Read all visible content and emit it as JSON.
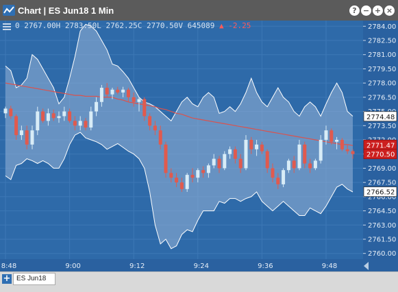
{
  "window": {
    "title": "Chart | ES Jun18 1 Min",
    "help_label": "?",
    "minimize_label": "−",
    "add_label": "+",
    "close_label": "×"
  },
  "header": {
    "ohlc_text": "0 2767.00H 2783.50L 2762.25C 2770.50V 645089",
    "change_text": "▲ -2.25"
  },
  "footer": {
    "add_tab_label": "+",
    "tab_label": "ES Jun18"
  },
  "chart_data": {
    "type": "candlestick",
    "symbol": "ES Jun18",
    "interval": "1 Min",
    "x_ticks": [
      "8:48",
      "9:00",
      "9:12",
      "9:24",
      "9:36",
      "9:48"
    ],
    "y_ticks": [
      2760.0,
      2761.5,
      2763.0,
      2764.5,
      2766.0,
      2767.5,
      2769.0,
      2770.5,
      2772.0,
      2773.5,
      2775.0,
      2776.5,
      2778.0,
      2779.5,
      2781.0,
      2782.5,
      2784.0
    ],
    "ylim": [
      2759.4,
      2784.6
    ],
    "price_labels": [
      {
        "value": 2774.48,
        "text": "2774.48",
        "kind": "band-upper"
      },
      {
        "value": 2771.47,
        "text": "2771.47",
        "kind": "moving-average"
      },
      {
        "value": 2770.5,
        "text": "2770.50",
        "kind": "last"
      },
      {
        "value": 2766.52,
        "text": "2766.52",
        "kind": "band-lower"
      }
    ],
    "bollinger_upper": [
      2779.8,
      2779.3,
      2777.5,
      2777.8,
      2778.5,
      2781.0,
      2780.5,
      2779.5,
      2778.5,
      2777.5,
      2775.8,
      2776.5,
      2778.5,
      2780.8,
      2783.5,
      2784.2,
      2784.0,
      2783.5,
      2782.5,
      2781.5,
      2780.0,
      2779.8,
      2779.2,
      2778.5,
      2777.5,
      2776.5,
      2776.0,
      2775.8,
      2775.5,
      2775.0,
      2774.5,
      2774.0,
      2775.0,
      2776.0,
      2776.5,
      2775.8,
      2775.5,
      2776.5,
      2777.0,
      2776.5,
      2774.8,
      2775.0,
      2775.5,
      2775.0,
      2775.8,
      2777.0,
      2778.5,
      2777.0,
      2776.0,
      2775.5,
      2776.5,
      2777.5,
      2776.5,
      2776.0,
      2775.0,
      2774.5,
      2775.5,
      2776.0,
      2775.5,
      2774.5,
      2775.8,
      2777.0,
      2778.0,
      2777.0,
      2775.0,
      2774.5
    ],
    "bollinger_lower": [
      2768.2,
      2767.8,
      2769.3,
      2769.5,
      2770.0,
      2769.8,
      2769.5,
      2769.8,
      2769.5,
      2769.0,
      2769.0,
      2770.0,
      2771.5,
      2772.5,
      2772.8,
      2772.2,
      2772.0,
      2771.8,
      2771.5,
      2771.0,
      2771.3,
      2771.6,
      2771.2,
      2770.8,
      2770.5,
      2770.0,
      2769.0,
      2766.5,
      2763.0,
      2761.0,
      2761.5,
      2760.5,
      2760.8,
      2762.0,
      2762.5,
      2762.3,
      2763.5,
      2764.5,
      2764.5,
      2764.5,
      2765.5,
      2765.3,
      2765.8,
      2765.8,
      2765.5,
      2765.8,
      2766.0,
      2766.5,
      2765.5,
      2765.0,
      2764.5,
      2765.0,
      2765.5,
      2765.0,
      2764.5,
      2764.0,
      2764.0,
      2764.8,
      2764.5,
      2764.2,
      2765.0,
      2766.0,
      2767.0,
      2767.3,
      2766.8,
      2766.5
    ],
    "moving_average": [
      2778.0,
      2777.9,
      2777.8,
      2777.7,
      2777.6,
      2777.5,
      2777.4,
      2777.3,
      2777.2,
      2777.1,
      2777.0,
      2776.9,
      2776.8,
      2776.7,
      2776.7,
      2776.6,
      2776.6,
      2776.6,
      2776.5,
      2776.5,
      2776.5,
      2776.3,
      2776.2,
      2776.0,
      2775.9,
      2775.8,
      2775.7,
      2775.6,
      2775.5,
      2775.3,
      2775.2,
      2775.0,
      2774.8,
      2774.7,
      2774.5,
      2774.3,
      2774.2,
      2774.1,
      2774.0,
      2773.9,
      2773.8,
      2773.7,
      2773.6,
      2773.5,
      2773.4,
      2773.3,
      2773.2,
      2773.1,
      2773.0,
      2772.9,
      2772.8,
      2772.7,
      2772.6,
      2772.5,
      2772.4,
      2772.3,
      2772.2,
      2772.1,
      2772.0,
      2771.9,
      2771.8,
      2771.7,
      2771.6,
      2771.5,
      2771.5,
      2771.4
    ],
    "candles": [
      [
        2774.8,
        2775.5,
        2774.3,
        2775.3
      ],
      [
        2775.3,
        2775.6,
        2774.2,
        2774.5
      ],
      [
        2774.5,
        2774.7,
        2772.0,
        2772.5
      ],
      [
        2772.5,
        2773.5,
        2772.0,
        2773.0
      ],
      [
        2773.0,
        2773.5,
        2771.0,
        2771.5
      ],
      [
        2771.5,
        2773.5,
        2771.0,
        2773.0
      ],
      [
        2773.0,
        2775.5,
        2772.5,
        2775.0
      ],
      [
        2775.0,
        2775.3,
        2773.8,
        2774.0
      ],
      [
        2774.0,
        2775.3,
        2773.5,
        2774.8
      ],
      [
        2774.8,
        2775.2,
        2774.0,
        2774.3
      ],
      [
        2774.3,
        2775.0,
        2773.8,
        2774.5
      ],
      [
        2774.5,
        2775.5,
        2774.0,
        2775.0
      ],
      [
        2775.0,
        2775.3,
        2773.8,
        2774.0
      ],
      [
        2774.0,
        2774.5,
        2773.0,
        2773.5
      ],
      [
        2773.5,
        2774.5,
        2773.0,
        2774.0
      ],
      [
        2774.0,
        2774.3,
        2773.0,
        2773.3
      ],
      [
        2773.3,
        2775.5,
        2773.0,
        2775.0
      ],
      [
        2775.0,
        2776.5,
        2774.5,
        2776.0
      ],
      [
        2776.0,
        2777.8,
        2775.5,
        2777.5
      ],
      [
        2777.5,
        2778.0,
        2776.5,
        2776.8
      ],
      [
        2776.8,
        2777.5,
        2776.3,
        2777.3
      ],
      [
        2777.3,
        2777.6,
        2776.8,
        2777.0
      ],
      [
        2777.0,
        2777.6,
        2776.5,
        2777.3
      ],
      [
        2777.3,
        2777.5,
        2776.0,
        2776.5
      ],
      [
        2776.5,
        2777.0,
        2775.5,
        2776.0
      ],
      [
        2776.0,
        2776.5,
        2775.0,
        2776.3
      ],
      [
        2776.3,
        2776.5,
        2774.0,
        2774.5
      ],
      [
        2774.5,
        2774.8,
        2773.0,
        2773.5
      ],
      [
        2773.5,
        2774.0,
        2772.5,
        2773.0
      ],
      [
        2773.0,
        2773.5,
        2771.0,
        2771.5
      ],
      [
        2771.5,
        2771.8,
        2768.0,
        2768.5
      ],
      [
        2768.5,
        2769.0,
        2767.5,
        2768.0
      ],
      [
        2768.0,
        2768.5,
        2767.0,
        2767.5
      ],
      [
        2767.5,
        2768.0,
        2766.5,
        2766.8
      ],
      [
        2766.8,
        2768.5,
        2766.5,
        2768.3
      ],
      [
        2768.3,
        2769.0,
        2767.5,
        2768.0
      ],
      [
        2768.0,
        2769.0,
        2767.5,
        2768.8
      ],
      [
        2768.8,
        2769.2,
        2768.0,
        2768.5
      ],
      [
        2768.5,
        2769.5,
        2768.0,
        2769.3
      ],
      [
        2769.3,
        2770.5,
        2769.0,
        2770.0
      ],
      [
        2770.0,
        2770.3,
        2768.5,
        2769.0
      ],
      [
        2769.0,
        2770.8,
        2768.8,
        2770.5
      ],
      [
        2770.5,
        2771.3,
        2770.0,
        2771.0
      ],
      [
        2771.0,
        2771.3,
        2769.5,
        2770.0
      ],
      [
        2770.0,
        2770.5,
        2768.5,
        2769.0
      ],
      [
        2769.0,
        2772.5,
        2768.8,
        2772.0
      ],
      [
        2772.0,
        2772.3,
        2770.5,
        2771.0
      ],
      [
        2771.0,
        2772.0,
        2770.3,
        2771.5
      ],
      [
        2771.5,
        2771.8,
        2770.5,
        2770.8
      ],
      [
        2770.8,
        2771.0,
        2768.5,
        2769.0
      ],
      [
        2769.0,
        2769.5,
        2767.5,
        2768.0
      ],
      [
        2768.0,
        2768.5,
        2766.8,
        2767.3
      ],
      [
        2767.3,
        2769.0,
        2767.0,
        2768.8
      ],
      [
        2768.8,
        2770.0,
        2768.5,
        2769.8
      ],
      [
        2769.8,
        2770.3,
        2768.5,
        2769.0
      ],
      [
        2769.0,
        2772.0,
        2768.8,
        2771.5
      ],
      [
        2771.5,
        2771.8,
        2769.0,
        2769.5
      ],
      [
        2769.5,
        2770.0,
        2768.5,
        2769.0
      ],
      [
        2769.0,
        2770.0,
        2768.8,
        2769.8
      ],
      [
        2769.8,
        2772.5,
        2769.5,
        2772.0
      ],
      [
        2772.0,
        2773.5,
        2771.5,
        2773.0
      ],
      [
        2773.0,
        2773.2,
        2771.5,
        2771.8
      ],
      [
        2771.8,
        2772.3,
        2771.0,
        2772.0
      ],
      [
        2772.0,
        2772.2,
        2770.8,
        2771.0
      ],
      [
        2771.0,
        2771.5,
        2770.5,
        2770.8
      ],
      [
        2770.8,
        2771.0,
        2770.0,
        2770.5
      ]
    ],
    "colors": {
      "up": "#d8ecf7",
      "down": "#e05a4e",
      "band_fill": "#8daed4",
      "band_line": "#ffffff",
      "moving_average": "#d9534f",
      "background": "#2e6aa9",
      "price_box_last": "#cc1f1f"
    }
  }
}
